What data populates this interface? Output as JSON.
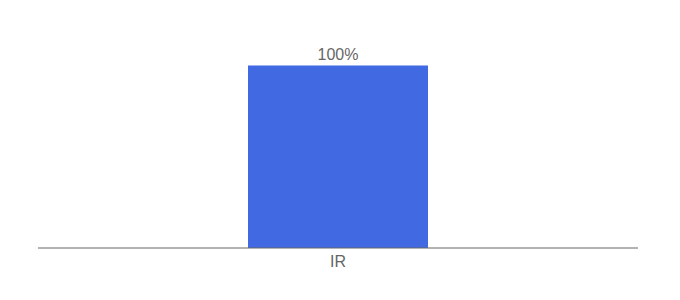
{
  "chart_data": {
    "type": "bar",
    "categories": [
      "IR"
    ],
    "values": [
      100
    ],
    "value_labels": [
      "100%"
    ],
    "data_labels": true,
    "color": "#4169E1",
    "ylim": [
      0,
      115
    ],
    "tick_labels": "x",
    "grid": false
  }
}
